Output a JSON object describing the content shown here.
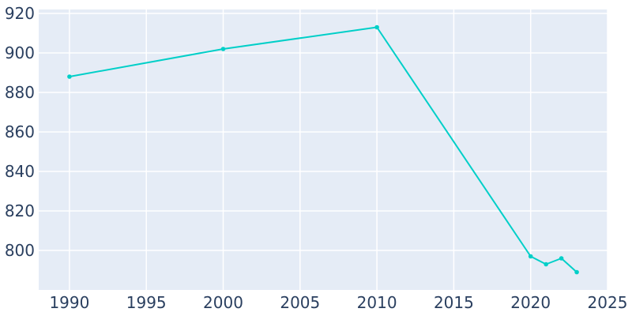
{
  "chart_data": {
    "type": "line",
    "title": "",
    "xlabel": "",
    "ylabel": "",
    "x": [
      1990,
      2000,
      2010,
      2020,
      2021,
      2022,
      2023
    ],
    "series": [
      {
        "values": [
          888,
          902,
          913,
          797,
          793,
          796,
          789
        ],
        "color": "#00cfc8"
      }
    ],
    "xlim": [
      1988,
      2025
    ],
    "ylim": [
      780,
      922
    ],
    "x_ticks": [
      1990,
      1995,
      2000,
      2005,
      2010,
      2015,
      2020,
      2025
    ],
    "y_ticks": [
      800,
      820,
      840,
      860,
      880,
      900,
      920
    ],
    "grid": true,
    "legend": "none",
    "plot_background": "#e5ecf6",
    "gridline_color": "#ffffff",
    "tick_label_color": "#2a3f5f"
  }
}
